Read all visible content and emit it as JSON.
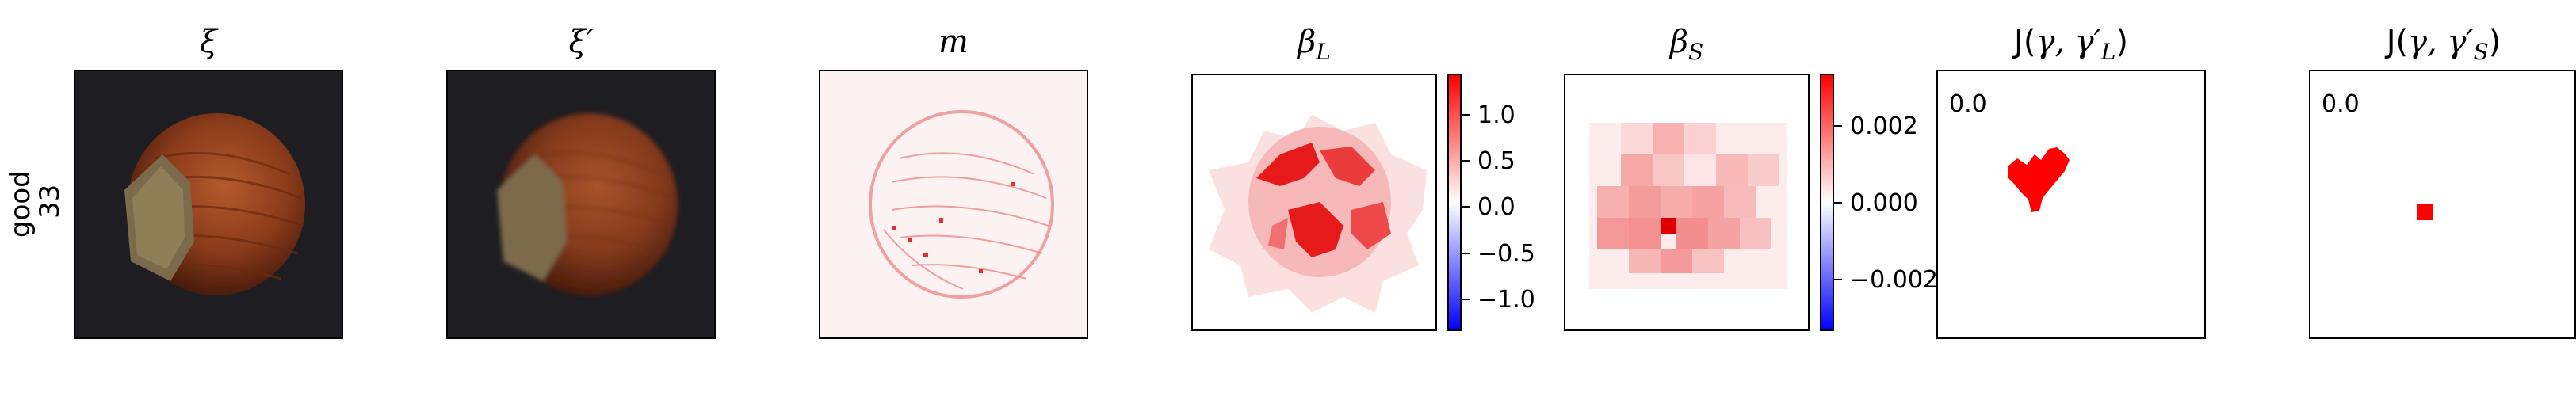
{
  "row_label": {
    "line1": "good",
    "line2": "33"
  },
  "titles": {
    "xi": "ξ",
    "xi_prime": "ξ′",
    "m": "m",
    "beta_L": "β",
    "beta_L_sub": "L",
    "beta_S": "β",
    "beta_S_sub": "S",
    "J_L_prefix": "J(",
    "J_L_args": "γ, γ′",
    "J_L_sub": "L",
    "J_L_suffix": ")",
    "J_S_prefix": "J(",
    "J_S_args": "γ, γ′",
    "J_S_sub": "S",
    "J_S_suffix": ")"
  },
  "colorbar_L": {
    "ticks": [
      "1.0",
      "0.5",
      "0.0",
      "−0.5",
      "−1.0"
    ]
  },
  "colorbar_S": {
    "ticks": [
      "0.002",
      "0.000",
      "−0.002"
    ]
  },
  "scores": {
    "J_L": "0.0",
    "J_S": "0.0"
  },
  "colors": {
    "bg_dark": "#1e1d22",
    "nut_main": "#8a3b1a",
    "red": "#ff0000",
    "pale_red": "#f9d4d4",
    "blue": "#0000ff"
  }
}
